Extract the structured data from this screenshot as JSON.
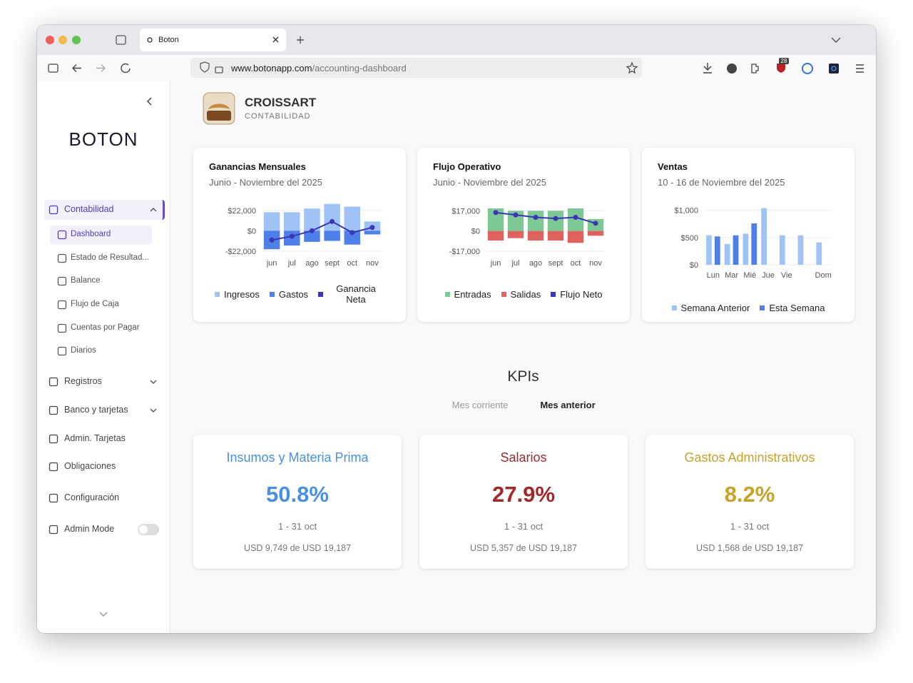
{
  "browser": {
    "tab_title": "Boton",
    "url_domain": "www.botonapp.com",
    "url_path": "/accounting-dashboard",
    "badge": "28"
  },
  "sidebar": {
    "logo": "BOTON",
    "menu": [
      {
        "label": "Contabilidad",
        "active": true,
        "expandable": true,
        "children": [
          {
            "label": "Dashboard",
            "active": true
          },
          {
            "label": "Estado de Resultad..."
          },
          {
            "label": "Balance"
          },
          {
            "label": "Flujo de Caja"
          },
          {
            "label": "Cuentas por Pagar"
          },
          {
            "label": "Diarios"
          }
        ]
      },
      {
        "label": "Registros",
        "expandable": true
      },
      {
        "label": "Banco y tarjetas",
        "expandable": true
      },
      {
        "label": "Admin. Tarjetas"
      },
      {
        "label": "Obligaciones"
      },
      {
        "label": "Configuración"
      }
    ],
    "admin_mode": {
      "label": "Admin Mode",
      "enabled": false
    }
  },
  "header": {
    "company": "CROISSART",
    "subtitle": "CONTABILIDAD"
  },
  "chart_data": [
    {
      "type": "bar",
      "title": "Ganancias Mensuales",
      "subtitle": "Junio - Noviembre del 2025",
      "stacked": true,
      "grid": true,
      "categories": [
        "jun",
        "jul",
        "ago",
        "sept",
        "oct",
        "nov"
      ],
      "ylim": [
        -26000,
        28000
      ],
      "yticks": [
        {
          "value": 22000,
          "label": "$22,000"
        },
        {
          "value": 0,
          "label": "$0"
        },
        {
          "value": -22000,
          "label": "-$22,000"
        }
      ],
      "series": [
        {
          "name": "Ingresos",
          "color": "#9fc3f7",
          "values": [
            20000,
            20000,
            24000,
            29000,
            26000,
            10000
          ]
        },
        {
          "name": "Gastos",
          "color": "#4f7fe8",
          "values": [
            -20000,
            -16000,
            -12000,
            -11000,
            -15000,
            -4000
          ]
        },
        {
          "name": "Ganancia Neta",
          "color": "#3b35b8",
          "type": "line",
          "values": [
            -10000,
            -6000,
            0,
            10000,
            -2000,
            3500
          ]
        }
      ]
    },
    {
      "type": "bar",
      "title": "Flujo Operativo",
      "subtitle": "Junio - Noviembre del 2025",
      "stacked": true,
      "grid": true,
      "categories": [
        "jun",
        "jul",
        "ago",
        "sept",
        "oct",
        "nov"
      ],
      "ylim": [
        -20000,
        22000
      ],
      "yticks": [
        {
          "value": 17000,
          "label": "$17,000"
        },
        {
          "value": 0,
          "label": "$0"
        },
        {
          "value": -17000,
          "label": "-$17,000"
        }
      ],
      "series": [
        {
          "name": "Entradas",
          "color": "#7ec896",
          "values": [
            19000,
            17000,
            17000,
            17000,
            19000,
            10000
          ]
        },
        {
          "name": "Salidas",
          "color": "#e0625f",
          "values": [
            -8000,
            -6000,
            -8000,
            -8000,
            -10000,
            -4000
          ]
        },
        {
          "name": "Flujo Neto",
          "color": "#3b35b8",
          "type": "line",
          "values": [
            15500,
            13500,
            11500,
            10500,
            11500,
            6500
          ]
        }
      ]
    },
    {
      "type": "bar",
      "title": "Ventas",
      "subtitle": "10 - 16 de Noviembre del 2025",
      "stacked": false,
      "grid": true,
      "categories": [
        "Lun",
        "Mar",
        "Mié",
        "Jue",
        "Vie",
        null,
        "Dom"
      ],
      "ylim": [
        0,
        1100
      ],
      "yticks": [
        {
          "value": 1000,
          "label": "$1,000"
        },
        {
          "value": 500,
          "label": "$500"
        },
        {
          "value": 0,
          "label": "$0"
        }
      ],
      "series": [
        {
          "name": "Semana Anterior",
          "color": "#9fc3f7",
          "values": [
            540,
            380,
            570,
            1040,
            540,
            540,
            410
          ]
        },
        {
          "name": "Esta Semana",
          "color": "#4f7fe8",
          "values": [
            520,
            540,
            760,
            null,
            null,
            null,
            null
          ]
        }
      ]
    }
  ],
  "kpis": {
    "title": "KPIs",
    "tabs": [
      {
        "label": "Mes corriente",
        "active": false
      },
      {
        "label": "Mes anterior",
        "active": true
      }
    ],
    "cards": [
      {
        "title": "Insumos y Materia Prima",
        "value": "50.8%",
        "period": "1 - 31 oct",
        "detail": "USD 9,749 de USD 19,187",
        "color": "#4a90e2"
      },
      {
        "title": "Salarios",
        "value": "27.9%",
        "period": "1 - 31 oct",
        "detail": "USD 5,357 de USD 19,187",
        "color": "#a3282c"
      },
      {
        "title": "Gastos Administrativos",
        "value": "8.2%",
        "period": "1 - 31 oct",
        "detail": "USD 1,568 de USD 19,187",
        "color": "#c9a227"
      }
    ]
  }
}
